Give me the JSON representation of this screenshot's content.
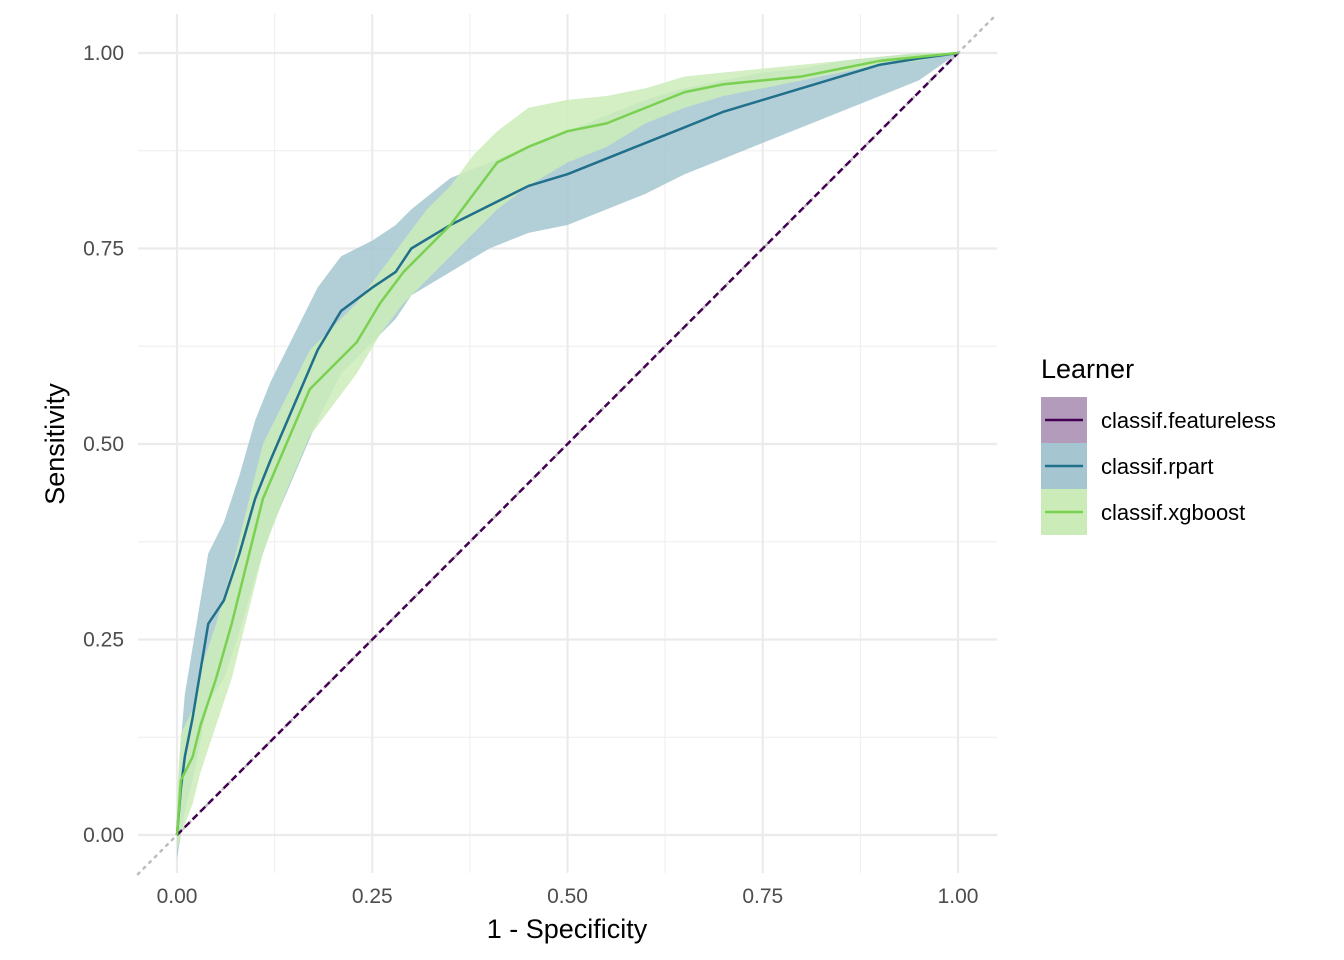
{
  "chart_data": {
    "type": "line",
    "title": "",
    "xlabel": "1 - Specificity",
    "ylabel": "Sensitivity",
    "xlim": [
      -0.05,
      1.05
    ],
    "ylim": [
      -0.05,
      1.05
    ],
    "x_ticks": [
      0,
      0.25,
      0.5,
      0.75,
      1
    ],
    "x_tick_labels": [
      "0.00",
      "0.25",
      "0.50",
      "0.75",
      "1.00"
    ],
    "y_ticks": [
      0,
      0.25,
      0.5,
      0.75,
      1
    ],
    "y_tick_labels": [
      "0.00",
      "0.25",
      "0.50",
      "0.75",
      "1.00"
    ],
    "grid": true,
    "reference_line": "diagonal dotted",
    "legend": {
      "title": "Learner",
      "position": "right"
    },
    "series": [
      {
        "name": "classif.featureless",
        "color": "#440154",
        "fill": "#b39bbb",
        "x": [
          0,
          1
        ],
        "y": [
          0,
          1
        ],
        "lower": [
          0,
          1
        ],
        "upper": [
          0,
          1
        ],
        "dashed": true
      },
      {
        "name": "classif.rpart",
        "color": "#21708b",
        "fill": "#a5c6d0",
        "x": [
          0,
          0.005,
          0.01,
          0.02,
          0.03,
          0.04,
          0.06,
          0.08,
          0.1,
          0.12,
          0.15,
          0.18,
          0.21,
          0.25,
          0.28,
          0.3,
          0.35,
          0.4,
          0.45,
          0.5,
          0.55,
          0.6,
          0.65,
          0.7,
          0.75,
          0.8,
          0.85,
          0.9,
          0.95,
          1.0
        ],
        "y": [
          0,
          0.06,
          0.1,
          0.15,
          0.21,
          0.27,
          0.3,
          0.36,
          0.43,
          0.48,
          0.55,
          0.62,
          0.67,
          0.7,
          0.72,
          0.75,
          0.78,
          0.805,
          0.83,
          0.845,
          0.865,
          0.885,
          0.905,
          0.925,
          0.94,
          0.955,
          0.97,
          0.985,
          0.993,
          1.0
        ],
        "lower": [
          -0.03,
          0.0,
          0.03,
          0.07,
          0.12,
          0.17,
          0.2,
          0.26,
          0.33,
          0.39,
          0.46,
          0.53,
          0.59,
          0.63,
          0.66,
          0.69,
          0.72,
          0.75,
          0.77,
          0.78,
          0.8,
          0.82,
          0.845,
          0.865,
          0.885,
          0.905,
          0.925,
          0.945,
          0.965,
          1.0
        ],
        "upper": [
          0.03,
          0.12,
          0.18,
          0.24,
          0.3,
          0.36,
          0.4,
          0.46,
          0.53,
          0.58,
          0.64,
          0.7,
          0.74,
          0.76,
          0.78,
          0.8,
          0.84,
          0.86,
          0.88,
          0.9,
          0.92,
          0.94,
          0.955,
          0.965,
          0.975,
          0.98,
          0.99,
          0.995,
          1.0,
          1.0
        ]
      },
      {
        "name": "classif.xgboost",
        "color": "#7ad151",
        "fill": "#cbecb9",
        "x": [
          0,
          0.005,
          0.02,
          0.03,
          0.05,
          0.07,
          0.09,
          0.11,
          0.14,
          0.17,
          0.2,
          0.23,
          0.26,
          0.29,
          0.32,
          0.35,
          0.38,
          0.41,
          0.45,
          0.5,
          0.55,
          0.6,
          0.65,
          0.7,
          0.75,
          0.8,
          0.85,
          0.9,
          0.95,
          1.0
        ],
        "y": [
          0,
          0.07,
          0.1,
          0.14,
          0.2,
          0.27,
          0.35,
          0.43,
          0.5,
          0.57,
          0.6,
          0.63,
          0.68,
          0.72,
          0.75,
          0.78,
          0.82,
          0.86,
          0.88,
          0.9,
          0.91,
          0.93,
          0.95,
          0.96,
          0.965,
          0.97,
          0.98,
          0.99,
          0.995,
          1.0
        ],
        "lower": [
          -0.02,
          0.0,
          0.04,
          0.08,
          0.14,
          0.2,
          0.28,
          0.36,
          0.44,
          0.51,
          0.55,
          0.59,
          0.64,
          0.68,
          0.71,
          0.74,
          0.77,
          0.8,
          0.83,
          0.86,
          0.88,
          0.91,
          0.93,
          0.945,
          0.955,
          0.965,
          0.975,
          0.985,
          0.99,
          1.0
        ],
        "upper": [
          0.05,
          0.13,
          0.16,
          0.21,
          0.27,
          0.34,
          0.42,
          0.5,
          0.56,
          0.62,
          0.65,
          0.68,
          0.72,
          0.76,
          0.8,
          0.83,
          0.87,
          0.9,
          0.93,
          0.94,
          0.945,
          0.955,
          0.97,
          0.975,
          0.98,
          0.985,
          0.99,
          0.995,
          1.0,
          1.0
        ]
      }
    ]
  }
}
